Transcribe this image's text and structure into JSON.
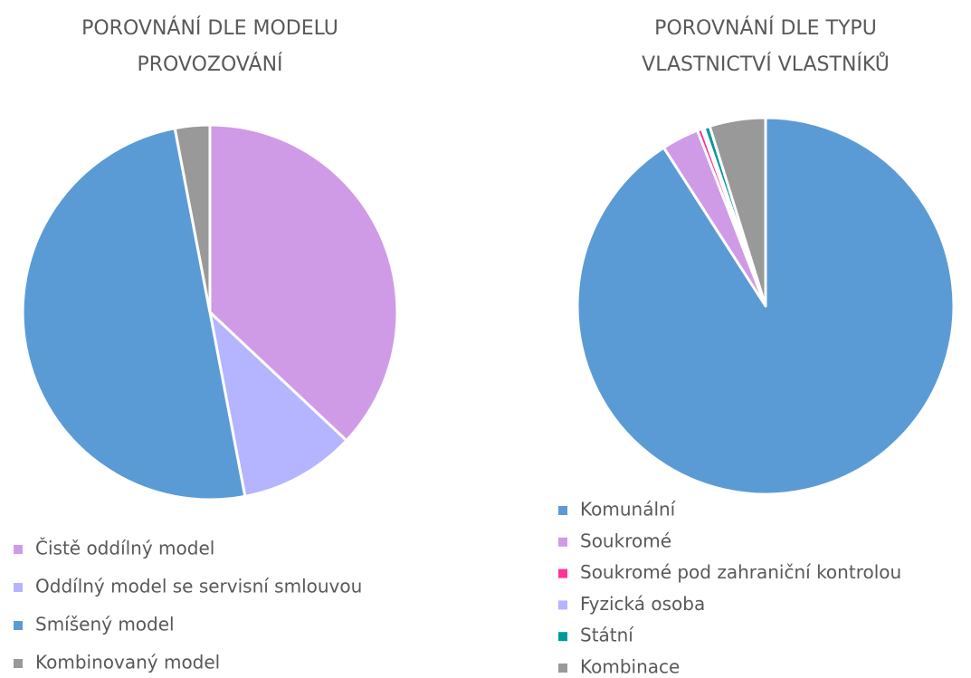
{
  "chart_data": [
    {
      "type": "pie",
      "title": [
        "POROVNÁNÍ DLE MODELU",
        "PROVOZOVÁNÍ"
      ],
      "categories": [
        "Čistě oddílný model",
        "Oddílný model se servisní smlouvou",
        "Smíšený model",
        "Kombinovaný model"
      ],
      "values": [
        37,
        10,
        50,
        3
      ],
      "colors": [
        "#cf9be6",
        "#b4b4ff",
        "#5b9bd5",
        "#999999"
      ]
    },
    {
      "type": "pie",
      "title": [
        "POROVNÁNÍ DLE TYPU",
        "VLASTNICTVÍ VLASTNÍKŮ"
      ],
      "categories": [
        "Komunální",
        "Soukromé",
        "Soukromé pod zahraniční kontrolou",
        "Fyzická osoba",
        "Státní",
        "Kombinace"
      ],
      "values": [
        90.9,
        3.2,
        0.4,
        0.2,
        0.5,
        4.8
      ],
      "colors": [
        "#5b9bd5",
        "#cf9be6",
        "#ff3399",
        "#b4b4ff",
        "#00999a",
        "#999999"
      ]
    }
  ]
}
